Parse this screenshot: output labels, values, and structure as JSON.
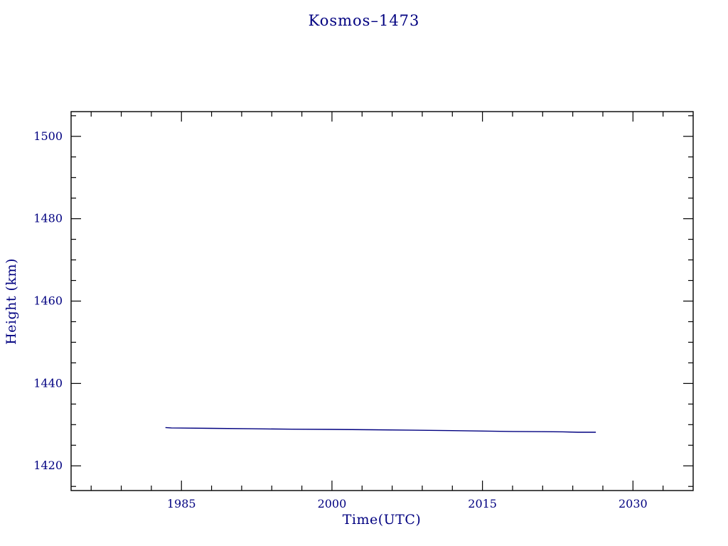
{
  "page": {
    "background_color": "#ffffff"
  },
  "chart_data": {
    "type": "line",
    "title": "Kosmos–1473",
    "xlabel": "Time(UTC)",
    "ylabel": "Height (km)",
    "xlim": [
      1974,
      2036
    ],
    "ylim": [
      1414,
      1506
    ],
    "x_major_ticks": [
      1985,
      2000,
      2015,
      2030
    ],
    "x_minor_step": 3,
    "y_major_ticks": [
      1420,
      1440,
      1460,
      1480,
      1500
    ],
    "y_minor_step": 5,
    "grid": false,
    "legend": false,
    "frame_color": "#000000",
    "text_color": "#000080",
    "line_color": "#000080",
    "series": [
      {
        "name": "height",
        "points": [
          [
            1983.4,
            1429.3
          ],
          [
            1984.0,
            1429.2
          ],
          [
            1988.0,
            1429.1
          ],
          [
            1992.0,
            1429.0
          ],
          [
            1996.0,
            1428.9
          ],
          [
            2000.0,
            1428.85
          ],
          [
            2004.0,
            1428.75
          ],
          [
            2008.0,
            1428.65
          ],
          [
            2012.0,
            1428.55
          ],
          [
            2015.0,
            1428.45
          ],
          [
            2018.0,
            1428.35
          ],
          [
            2021.0,
            1428.3
          ],
          [
            2023.0,
            1428.25
          ],
          [
            2024.5,
            1428.15
          ],
          [
            2026.3,
            1428.15
          ]
        ]
      }
    ]
  }
}
